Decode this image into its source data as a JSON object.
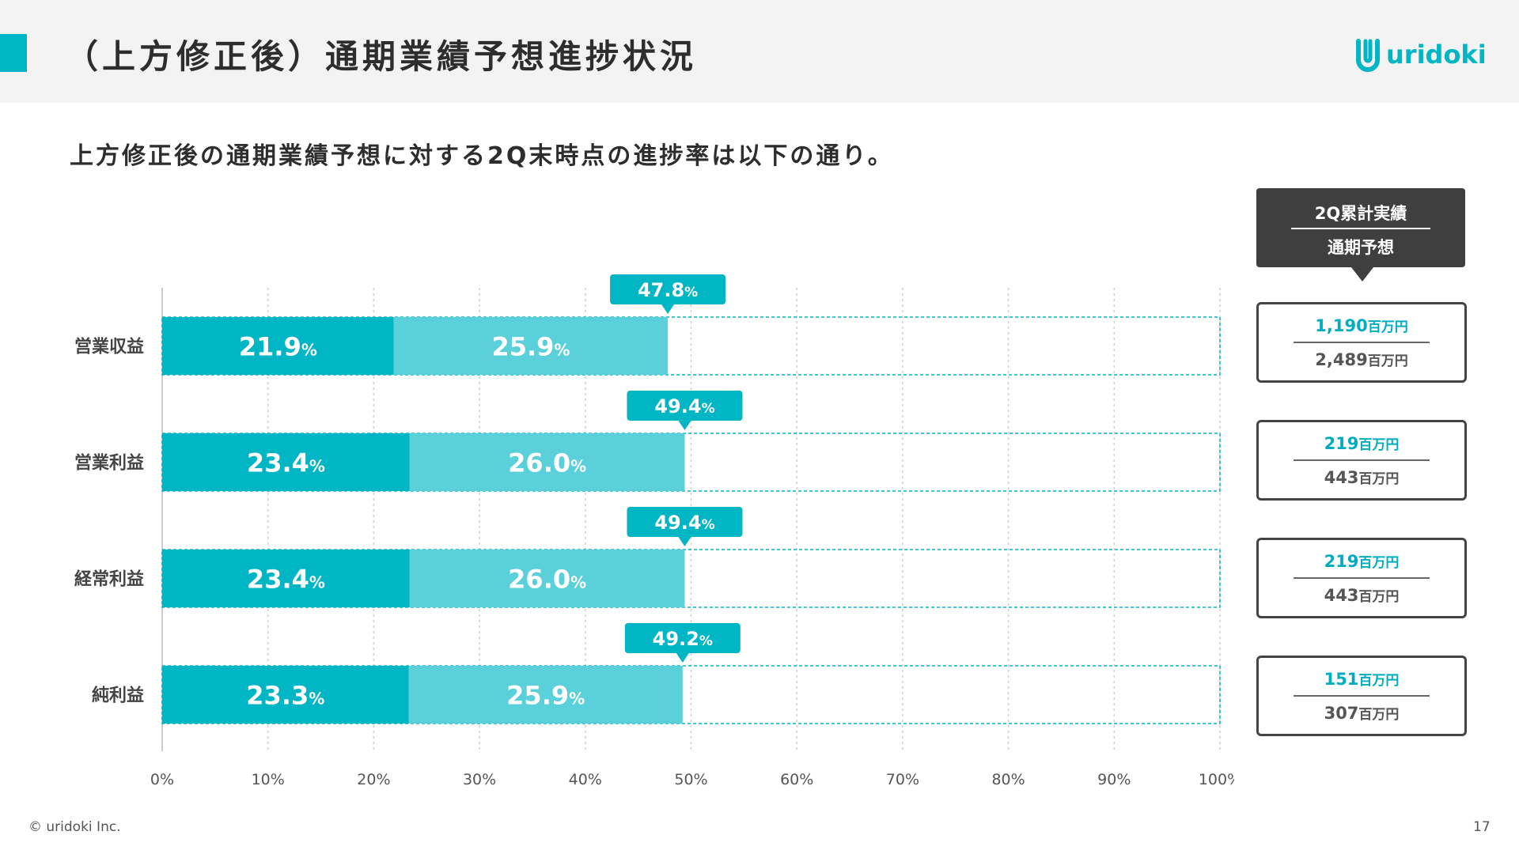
{
  "header": {
    "title": "（上方修正後）通期業績予想進捗状況",
    "logo_text": "uridoki"
  },
  "subtitle": "上方修正後の通期業績予想に対する2Q末時点の進捗率は以下の通り。",
  "legend": {
    "top": "2Q累計実績",
    "bottom": "通期予想"
  },
  "colors": {
    "accent": "#00b5c4",
    "segment1": "#00b5c4",
    "segment2": "#5ad0da",
    "dark": "#3f3f3f"
  },
  "chart_data": {
    "type": "bar",
    "orientation": "horizontal",
    "stacked": true,
    "categories": [
      "営業収益",
      "営業利益",
      "経常利益",
      "純利益"
    ],
    "series": [
      {
        "values": [
          21.9,
          23.4,
          23.4,
          23.3
        ]
      },
      {
        "values": [
          25.9,
          26.0,
          26.0,
          25.9
        ]
      }
    ],
    "totals": [
      47.8,
      49.4,
      49.4,
      49.2
    ],
    "value_suffix": "%",
    "xlim": [
      0,
      100
    ],
    "xticks": [
      "0%",
      "10%",
      "20%",
      "30%",
      "40%",
      "50%",
      "60%",
      "70%",
      "80%",
      "90%",
      "100%"
    ],
    "grid": true,
    "target_box": "100% dashed outline"
  },
  "values_table": [
    {
      "actual": "1,190",
      "forecast": "2,489",
      "unit": "百万円"
    },
    {
      "actual": "219",
      "forecast": "443",
      "unit": "百万円"
    },
    {
      "actual": "219",
      "forecast": "443",
      "unit": "百万円"
    },
    {
      "actual": "151",
      "forecast": "307",
      "unit": "百万円"
    }
  ],
  "footer": {
    "copyright": "© uridoki Inc.",
    "page_number": "17"
  }
}
